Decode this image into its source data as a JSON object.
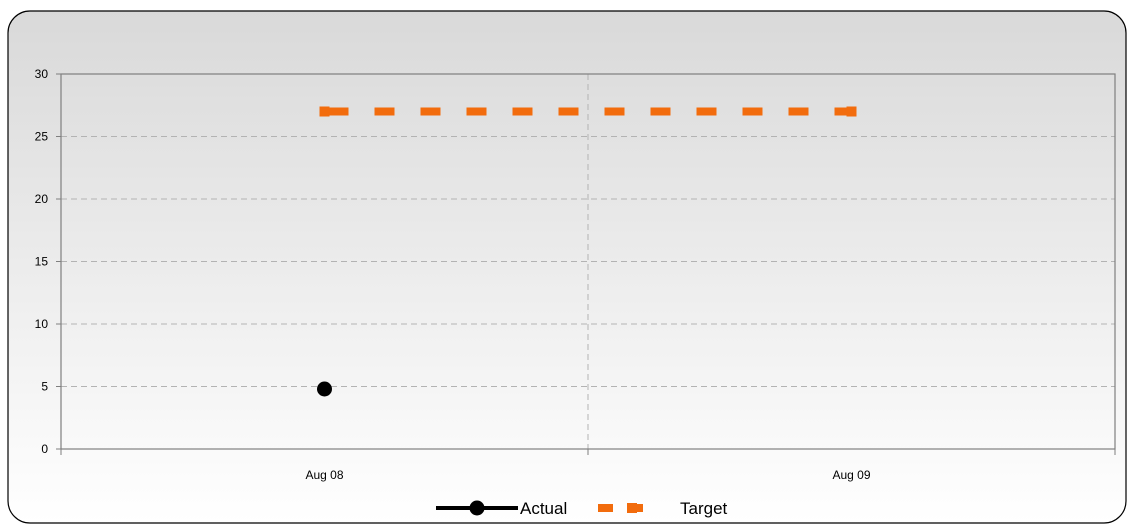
{
  "chart_data": {
    "type": "line",
    "categories": [
      "Aug 08",
      "Aug 09"
    ],
    "ylim": [
      0,
      30
    ],
    "yticks": [
      0,
      5,
      10,
      15,
      20,
      25,
      30
    ],
    "grid": true,
    "legend_position": "bottom",
    "series": [
      {
        "name": "Actual",
        "values": [
          4.8,
          null
        ],
        "color": "#000000",
        "style": "solid-marker-circle"
      },
      {
        "name": "Target",
        "values": [
          27,
          27
        ],
        "color": "#f26c0d",
        "style": "dashed-marker-square"
      }
    ],
    "title": "",
    "xlabel": "",
    "ylabel": ""
  },
  "colors": {
    "background_top": "#d9d9d9",
    "background_bottom": "#ffffff",
    "axis": "#7f7f7f",
    "grid": "#b3b3b3"
  }
}
